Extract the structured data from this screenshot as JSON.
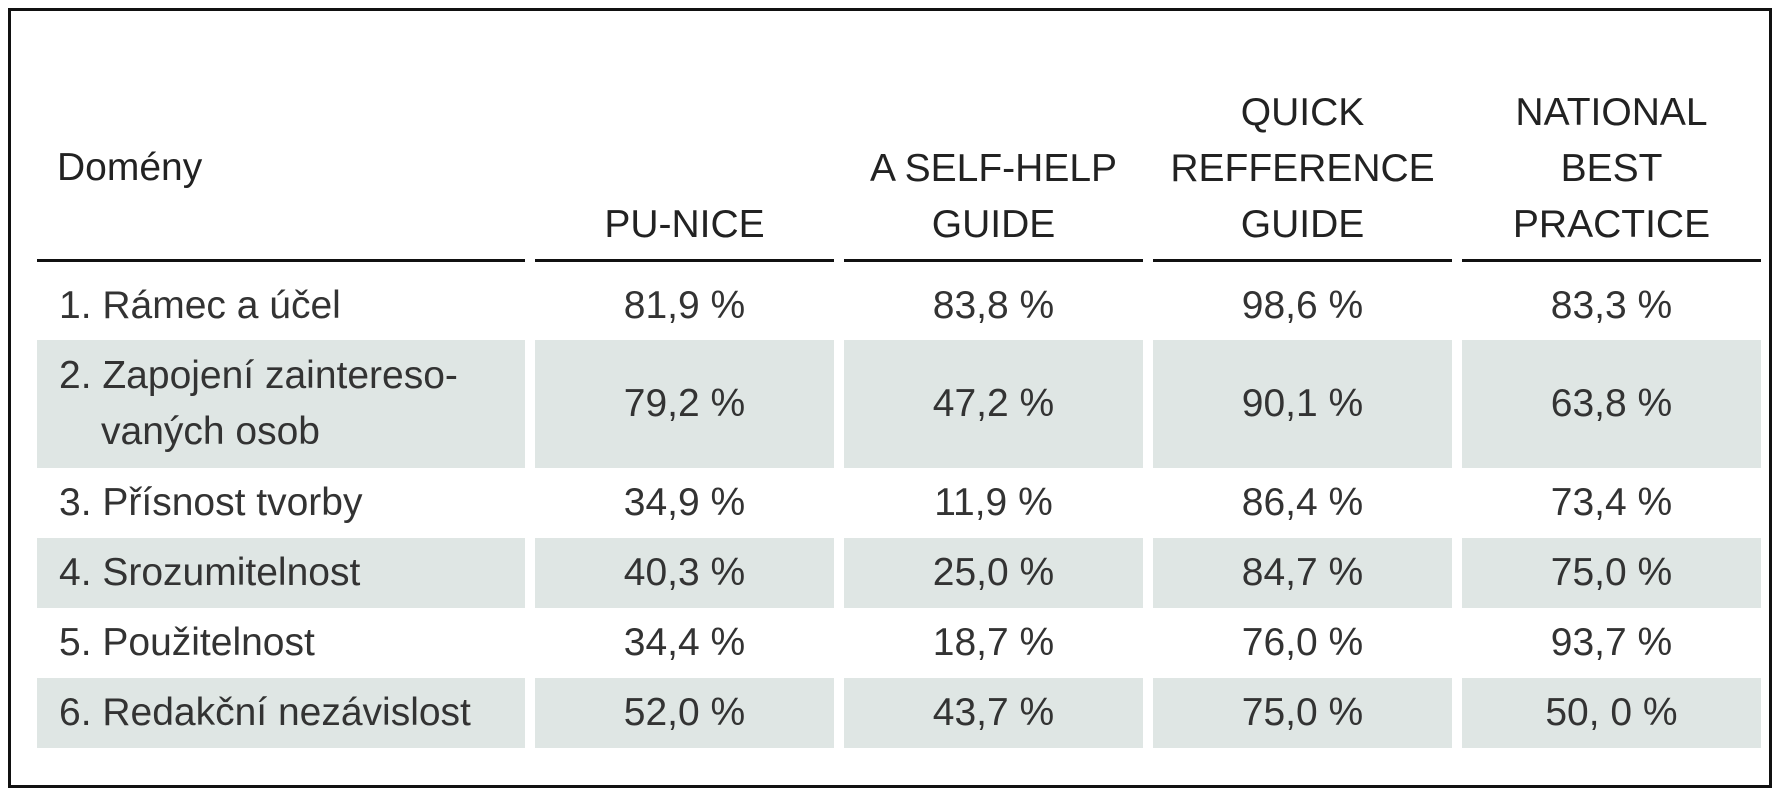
{
  "table": {
    "header": {
      "domain": "Domény",
      "columns": [
        "PU-NICE",
        "A SELF-HELP\nGUIDE",
        "QUICK\nREFFERENCE\nGUIDE",
        "NATIONAL\nBEST\nPRACTICE"
      ]
    },
    "rows": [
      {
        "label": "1. Rámec a účel",
        "label_cont": "",
        "values": [
          "81,9 %",
          "83,8 %",
          "98,6 %",
          "83,3 %"
        ]
      },
      {
        "label": "2. Zapojení zaintereso-",
        "label_cont": "vaných osob",
        "values": [
          "79,2 %",
          "47,2 %",
          "90,1 %",
          "63,8 %"
        ]
      },
      {
        "label": "3. Přísnost tvorby",
        "label_cont": "",
        "values": [
          "34,9 %",
          "11,9 %",
          "86,4 %",
          "73,4 %"
        ]
      },
      {
        "label": "4. Srozumitelnost",
        "label_cont": "",
        "values": [
          "40,3 %",
          "25,0 %",
          "84,7 %",
          "75,0 %"
        ]
      },
      {
        "label": "5. Použitelnost",
        "label_cont": "",
        "values": [
          "34,4 %",
          "18,7 %",
          "76,0 %",
          "93,7 %"
        ]
      },
      {
        "label": "6. Redakční nezávislost",
        "label_cont": "",
        "values": [
          "52,0 %",
          "43,7 %",
          "75,0 %",
          "50, 0 %"
        ]
      }
    ]
  }
}
